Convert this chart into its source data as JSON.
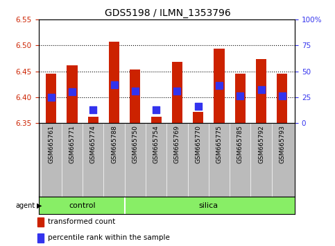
{
  "title": "GDS5198 / ILMN_1353796",
  "samples": [
    "GSM665761",
    "GSM665771",
    "GSM665774",
    "GSM665788",
    "GSM665750",
    "GSM665754",
    "GSM665769",
    "GSM665770",
    "GSM665775",
    "GSM665785",
    "GSM665792",
    "GSM665793"
  ],
  "groups": [
    "control",
    "control",
    "control",
    "control",
    "silica",
    "silica",
    "silica",
    "silica",
    "silica",
    "silica",
    "silica",
    "silica"
  ],
  "bar_bottom": 6.35,
  "bar_tops": [
    6.445,
    6.462,
    6.362,
    6.508,
    6.453,
    6.362,
    6.468,
    6.372,
    6.494,
    6.445,
    6.474,
    6.445
  ],
  "percentile_values": [
    6.4,
    6.41,
    6.375,
    6.424,
    6.412,
    6.375,
    6.412,
    6.382,
    6.422,
    6.402,
    6.414,
    6.402
  ],
  "ylim_left": [
    6.35,
    6.55
  ],
  "ylim_right": [
    0,
    100
  ],
  "yticks_left": [
    6.35,
    6.4,
    6.45,
    6.5,
    6.55
  ],
  "yticks_right": [
    0,
    25,
    50,
    75,
    100
  ],
  "ytick_labels_right": [
    "0",
    "25",
    "50",
    "75",
    "100%"
  ],
  "bar_color": "#cc2200",
  "dot_color": "#3333ee",
  "group_color": "#88ee66",
  "agent_label": "agent",
  "group_labels": [
    "control",
    "silica"
  ],
  "n_control": 4,
  "legend_bar_label": "transformed count",
  "legend_dot_label": "percentile rank within the sample",
  "bar_width": 0.5,
  "dot_size": 55,
  "left_tick_color": "#cc2200",
  "right_tick_color": "#3333ee",
  "background_xtick": "#bbbbbb",
  "title_fontsize": 10,
  "tick_fontsize": 7.5,
  "xlabel_fontsize": 6.5,
  "legend_fontsize": 7.5
}
